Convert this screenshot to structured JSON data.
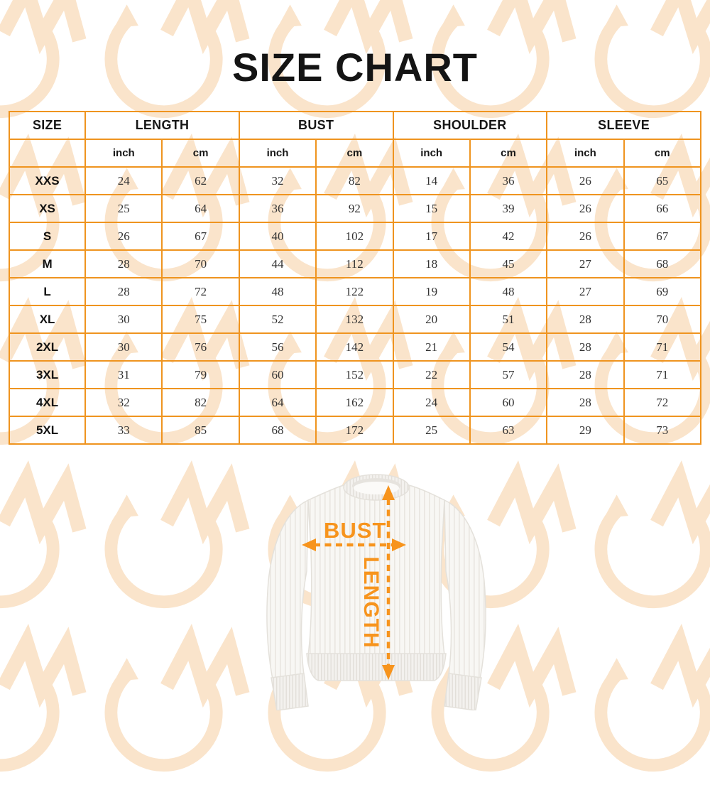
{
  "title": "SIZE CHART",
  "chart_data": {
    "type": "table",
    "title": "SIZE CHART",
    "column_groups": [
      {
        "label": "SIZE",
        "span": 1
      },
      {
        "label": "LENGTH",
        "span": 2
      },
      {
        "label": "BUST",
        "span": 2
      },
      {
        "label": "SHOULDER",
        "span": 2
      },
      {
        "label": "SLEEVE",
        "span": 2
      }
    ],
    "unit_headers": [
      "inch",
      "cm",
      "inch",
      "cm",
      "inch",
      "cm",
      "inch",
      "cm"
    ],
    "rows": [
      {
        "size": "XXS",
        "values": [
          24,
          62,
          32,
          82,
          14,
          36,
          26,
          65
        ]
      },
      {
        "size": "XS",
        "values": [
          25,
          64,
          36,
          92,
          15,
          39,
          26,
          66
        ]
      },
      {
        "size": "S",
        "values": [
          26,
          67,
          40,
          102,
          17,
          42,
          26,
          67
        ]
      },
      {
        "size": "M",
        "values": [
          28,
          70,
          44,
          112,
          18,
          45,
          27,
          68
        ]
      },
      {
        "size": "L",
        "values": [
          28,
          72,
          48,
          122,
          19,
          48,
          27,
          69
        ]
      },
      {
        "size": "XL",
        "values": [
          30,
          75,
          52,
          132,
          20,
          51,
          28,
          70
        ]
      },
      {
        "size": "2XL",
        "values": [
          30,
          76,
          56,
          142,
          21,
          54,
          28,
          71
        ]
      },
      {
        "size": "3XL",
        "values": [
          31,
          79,
          60,
          152,
          22,
          57,
          28,
          71
        ]
      },
      {
        "size": "4XL",
        "values": [
          32,
          82,
          64,
          162,
          24,
          60,
          28,
          72
        ]
      },
      {
        "size": "5XL",
        "values": [
          33,
          85,
          68,
          172,
          25,
          63,
          29,
          73
        ]
      }
    ]
  },
  "diagram": {
    "bust_label": "BUST",
    "length_label": "LENGTH"
  },
  "colors": {
    "accent": "#F7941D",
    "table_border": "#EF941F",
    "watermark": "#FAE4CB"
  }
}
